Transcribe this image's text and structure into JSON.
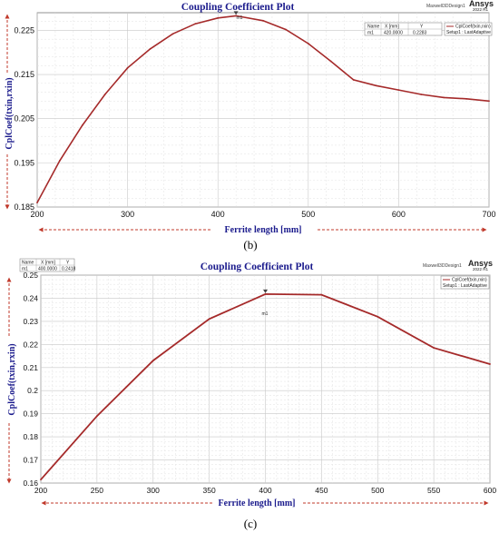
{
  "panel_labels": [
    "(b)",
    "(c)"
  ],
  "colors": {
    "curve": "#a52a2a",
    "title": "#1a1a8c",
    "arrow": "#c0392b",
    "grid": "#c8c8c8"
  },
  "charts": [
    {
      "title": "Coupling Coefficient Plot",
      "xlabel": "Ferrite length [mm]",
      "ylabel": "CplCoef(txin,rxin)",
      "brand_design": "Maxwell3DDesign1",
      "brand_name": "Ansys",
      "brand_version": "2022 R1",
      "marker_label": "m1",
      "marker_table": {
        "headers": [
          "Name",
          "X [mm]",
          "Y"
        ],
        "row": [
          "m1",
          "420.0000",
          "0.2283"
        ]
      },
      "legend": {
        "series": "CplCoef(txin,rxin)",
        "setup": "Setup1 : LastAdaptive"
      },
      "xticks": [
        "200",
        "300",
        "400",
        "500",
        "600",
        "700"
      ],
      "yticks": [
        "0.185",
        "0.195",
        "0.205",
        "0.215",
        "0.225"
      ]
    },
    {
      "title": "Coupling Coefficient Plot",
      "xlabel": "Ferrite length [mm]",
      "ylabel": "CplCoef(txin,rxin)",
      "brand_design": "Maxwell3DDesign1",
      "brand_name": "Ansys",
      "brand_version": "2022 R1",
      "marker_label": "m1",
      "marker_table": {
        "headers": [
          "Name",
          "X [mm]",
          "Y"
        ],
        "row": [
          "m1",
          "400.0000",
          "0.2418"
        ]
      },
      "legend": {
        "series": "CplCoef(txin,rxin)",
        "setup": "Setup1 : LastAdaptive"
      },
      "xticks": [
        "200",
        "250",
        "300",
        "350",
        "400",
        "450",
        "500",
        "550",
        "600"
      ],
      "yticks": [
        "0.16",
        "0.17",
        "0.18",
        "0.19",
        "0.2",
        "0.21",
        "0.22",
        "0.23",
        "0.24",
        "0.25"
      ]
    }
  ],
  "chart_data": [
    {
      "type": "line",
      "title": "Coupling Coefficient Plot",
      "xlabel": "Ferrite length [mm]",
      "ylabel": "CplCoef(txin,rxin)",
      "xlim": [
        200,
        700
      ],
      "ylim": [
        0.185,
        0.229
      ],
      "grid": true,
      "legend_position": "top-right",
      "series": [
        {
          "name": "CplCoef(txin,rxin)",
          "x": [
            200,
            225,
            250,
            275,
            300,
            325,
            350,
            375,
            400,
            420,
            450,
            475,
            500,
            525,
            550,
            575,
            600,
            625,
            650,
            675,
            700
          ],
          "y": [
            0.186,
            0.1955,
            0.2035,
            0.2105,
            0.2165,
            0.2208,
            0.2242,
            0.2265,
            0.2278,
            0.2283,
            0.2272,
            0.2252,
            0.222,
            0.218,
            0.2138,
            0.2125,
            0.2115,
            0.2105,
            0.2098,
            0.2095,
            0.209
          ]
        }
      ],
      "marker": {
        "name": "m1",
        "x": 420,
        "y": 0.2283
      }
    },
    {
      "type": "line",
      "title": "Coupling Coefficient Plot",
      "xlabel": "Ferrite length [mm]",
      "ylabel": "CplCoef(txin,rxin)",
      "xlim": [
        200,
        600
      ],
      "ylim": [
        0.16,
        0.25
      ],
      "grid": true,
      "legend_position": "top-right",
      "series": [
        {
          "name": "CplCoef(txin,rxin)",
          "x": [
            200,
            250,
            300,
            350,
            400,
            450,
            500,
            550,
            600
          ],
          "y": [
            0.1615,
            0.189,
            0.213,
            0.231,
            0.2418,
            0.2415,
            0.232,
            0.2185,
            0.2115
          ]
        }
      ],
      "marker": {
        "name": "m1",
        "x": 400,
        "y": 0.2418
      }
    }
  ]
}
